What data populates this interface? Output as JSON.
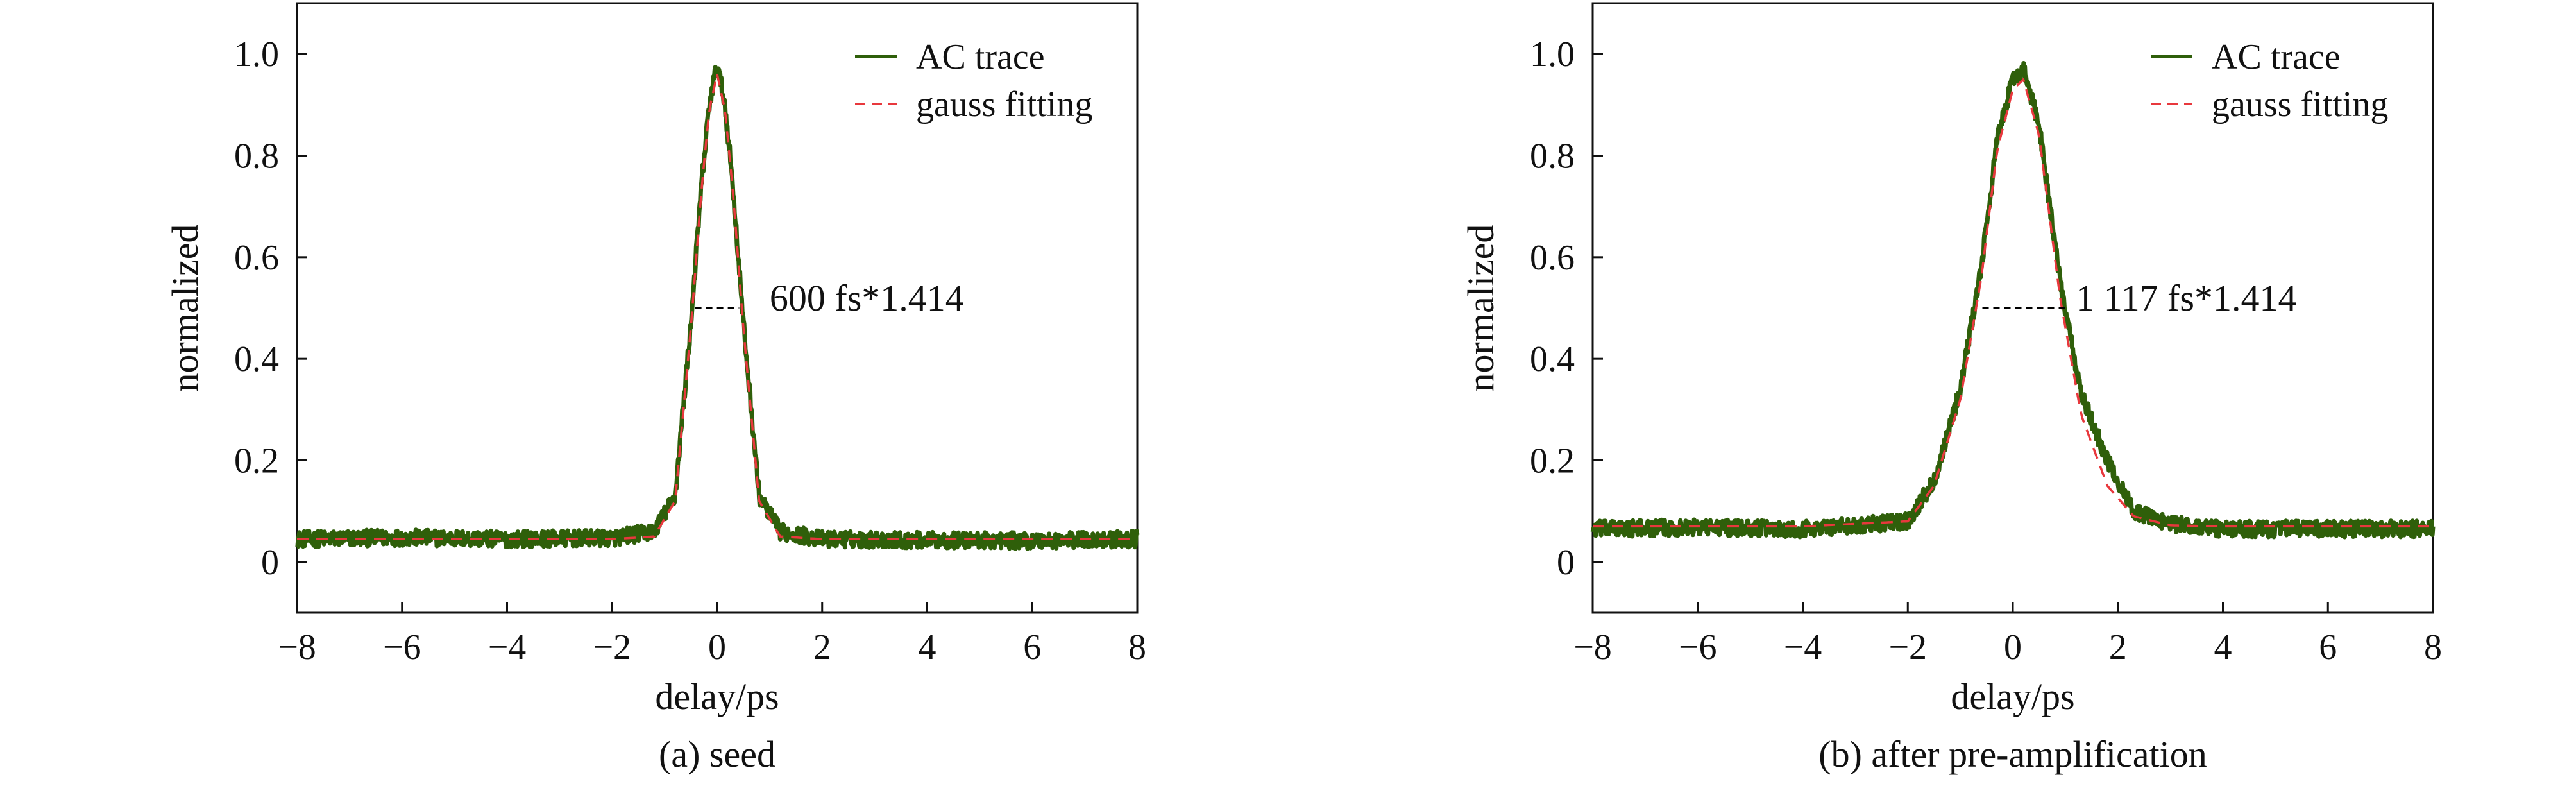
{
  "chart_data": [
    {
      "type": "line",
      "caption": "(a) seed",
      "xlabel": "delay/ps",
      "ylabel": "normalized",
      "xlim": [
        -8,
        8
      ],
      "ylim": [
        -0.1,
        1.1
      ],
      "x_ticks": [
        -8,
        -6,
        -4,
        -2,
        0,
        2,
        4,
        6,
        8
      ],
      "x_tick_labels": [
        "−8",
        "−6",
        "−4",
        "−2",
        "0",
        "2",
        "4",
        "6",
        "8"
      ],
      "y_ticks": [
        0,
        0.2,
        0.4,
        0.6,
        0.8,
        1.0
      ],
      "y_tick_labels": [
        "0",
        "0.2",
        "0.4",
        "0.6",
        "0.8",
        "1.0"
      ],
      "legend_position": "top-right",
      "grid": false,
      "series": [
        {
          "name": "AC trace",
          "style": "solid",
          "color": "#2f5f0a",
          "x": [
            -8,
            -6,
            -4,
            -2,
            -1.2,
            -0.8,
            -0.5,
            -0.3,
            -0.15,
            0,
            0.15,
            0.3,
            0.5,
            0.8,
            1.2,
            2,
            4,
            6,
            8
          ],
          "y": [
            0.045,
            0.048,
            0.045,
            0.047,
            0.06,
            0.13,
            0.47,
            0.74,
            0.9,
            0.98,
            0.9,
            0.74,
            0.47,
            0.13,
            0.06,
            0.045,
            0.043,
            0.042,
            0.045
          ]
        },
        {
          "name": "gauss fitting",
          "style": "dashed",
          "color": "#e8383d",
          "x": [
            -8,
            -6,
            -4,
            -2,
            -1.2,
            -0.8,
            -0.5,
            -0.3,
            -0.15,
            0,
            0.15,
            0.3,
            0.5,
            0.8,
            1.2,
            2,
            4,
            6,
            8
          ],
          "y": [
            0.045,
            0.045,
            0.045,
            0.045,
            0.05,
            0.12,
            0.46,
            0.73,
            0.89,
            0.96,
            0.89,
            0.73,
            0.46,
            0.12,
            0.05,
            0.045,
            0.045,
            0.045,
            0.045
          ]
        }
      ],
      "fwhm_marker": {
        "x_start": -0.42,
        "x_end": 0.42,
        "y": 0.5,
        "color": "#000000"
      },
      "annotation": {
        "text": "600 fs*1.414",
        "x": 1.0,
        "y": 0.52
      },
      "colors": {
        "trace": "#2f5f0a",
        "fit": "#e8383d"
      }
    },
    {
      "type": "line",
      "caption": "(b) after pre-amplification",
      "xlabel": "delay/ps",
      "ylabel": "normalized",
      "xlim": [
        -8,
        8
      ],
      "ylim": [
        -0.1,
        1.1
      ],
      "x_ticks": [
        -8,
        -6,
        -4,
        -2,
        0,
        2,
        4,
        6,
        8
      ],
      "x_tick_labels": [
        "−8",
        "−6",
        "−4",
        "−2",
        "0",
        "2",
        "4",
        "6",
        "8"
      ],
      "y_ticks": [
        0,
        0.2,
        0.4,
        0.6,
        0.8,
        1.0
      ],
      "y_tick_labels": [
        "0",
        "0.2",
        "0.4",
        "0.6",
        "0.8",
        "1.0"
      ],
      "legend_position": "top-right",
      "grid": false,
      "series": [
        {
          "name": "AC trace",
          "style": "solid",
          "color": "#2f5f0a",
          "x": [
            -8,
            -6,
            -4,
            -2,
            -1.5,
            -1,
            -0.6,
            -0.3,
            0,
            0.2,
            0.5,
            0.9,
            1.3,
            1.8,
            2.3,
            3,
            4,
            6,
            8
          ],
          "y": [
            0.065,
            0.068,
            0.065,
            0.08,
            0.16,
            0.34,
            0.58,
            0.83,
            0.95,
            0.97,
            0.86,
            0.55,
            0.33,
            0.2,
            0.1,
            0.075,
            0.065,
            0.065,
            0.065
          ]
        },
        {
          "name": "gauss fitting",
          "style": "dashed",
          "color": "#e8383d",
          "x": [
            -8,
            -6,
            -4,
            -2,
            -1.5,
            -1,
            -0.6,
            -0.3,
            0,
            0.2,
            0.5,
            0.9,
            1.3,
            1.8,
            2.3,
            3,
            4,
            6,
            8
          ],
          "y": [
            0.07,
            0.07,
            0.07,
            0.08,
            0.15,
            0.32,
            0.56,
            0.81,
            0.93,
            0.95,
            0.84,
            0.52,
            0.29,
            0.15,
            0.09,
            0.072,
            0.07,
            0.07,
            0.07
          ]
        }
      ],
      "fwhm_marker": {
        "x_start": -0.58,
        "x_end": 1.0,
        "y": 0.5,
        "color": "#000000"
      },
      "annotation": {
        "text": "1 117 fs*1.414",
        "x": 1.2,
        "y": 0.52
      },
      "colors": {
        "trace": "#2f5f0a",
        "fit": "#e8383d"
      }
    }
  ]
}
